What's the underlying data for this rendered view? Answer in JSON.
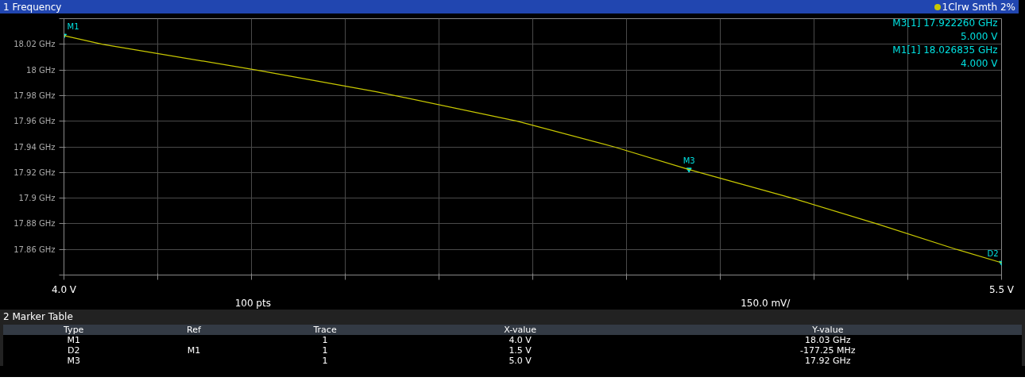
{
  "chart_data": {
    "type": "line",
    "title": "1 Frequency",
    "x": [
      4.0,
      4.062,
      4.307,
      4.5,
      4.725,
      4.88,
      5.0,
      5.165,
      5.3,
      5.428,
      5.5
    ],
    "series": [
      {
        "color": "#c8c800",
        "values": [
          18.0268,
          18.02,
          18.0,
          17.983,
          17.96,
          17.94,
          17.9223,
          17.9,
          17.88,
          17.86,
          17.8496
        ]
      }
    ],
    "xlim": [
      4.0,
      5.5
    ],
    "ylim": [
      17.84,
      18.04
    ],
    "xticks": [
      {
        "value": 4.0,
        "label": "4.0 V"
      },
      {
        "value": 4.15,
        "label": null
      },
      {
        "value": 4.3,
        "label": null
      },
      {
        "value": 4.45,
        "label": null
      },
      {
        "value": 4.6,
        "label": null
      },
      {
        "value": 4.75,
        "label": null
      },
      {
        "value": 4.9,
        "label": null
      },
      {
        "value": 5.05,
        "label": null
      },
      {
        "value": 5.2,
        "label": null
      },
      {
        "value": 5.35,
        "label": null
      },
      {
        "value": 5.5,
        "label": "5.5 V"
      }
    ],
    "yticks": [
      {
        "value": 17.84,
        "label": null
      },
      {
        "value": 17.86,
        "label": "17.86 GHz"
      },
      {
        "value": 17.88,
        "label": "17.88 GHz"
      },
      {
        "value": 17.9,
        "label": "17.9 GHz"
      },
      {
        "value": 17.92,
        "label": "17.92 GHz"
      },
      {
        "value": 17.94,
        "label": "17.94 GHz"
      },
      {
        "value": 17.96,
        "label": "17.96 GHz"
      },
      {
        "value": 17.98,
        "label": "17.98 GHz"
      },
      {
        "value": 18.0,
        "label": "18 GHz"
      },
      {
        "value": 18.02,
        "label": "18.02 GHz"
      },
      {
        "value": 18.04,
        "label": null
      }
    ],
    "grid": true,
    "annotations": [
      "1Clrw Smth 2%",
      "M3[1] 17.922260 GHz",
      "5.000 V",
      "M1[1] 18.026835 GHz",
      "4.000 V",
      "100 pts",
      "150.0 mV/",
      "2 Marker Table",
      "Type\tRef\tTrace\tX-value\tY-value",
      "M1\t\t1\t4.0 V\t18.03 GHz",
      "D2\tM1\t1\t1.5 V\t-177.25 MHz",
      "M3\t\t1\t5.0 V\t17.92 GHz",
      {
        "text": "M1",
        "x": 4.0,
        "y": 18.0268
      },
      {
        "text": "M3",
        "x": 5.0,
        "y": 17.9223
      },
      {
        "text": "D2",
        "x": 5.5,
        "y": 17.8496
      }
    ]
  }
}
